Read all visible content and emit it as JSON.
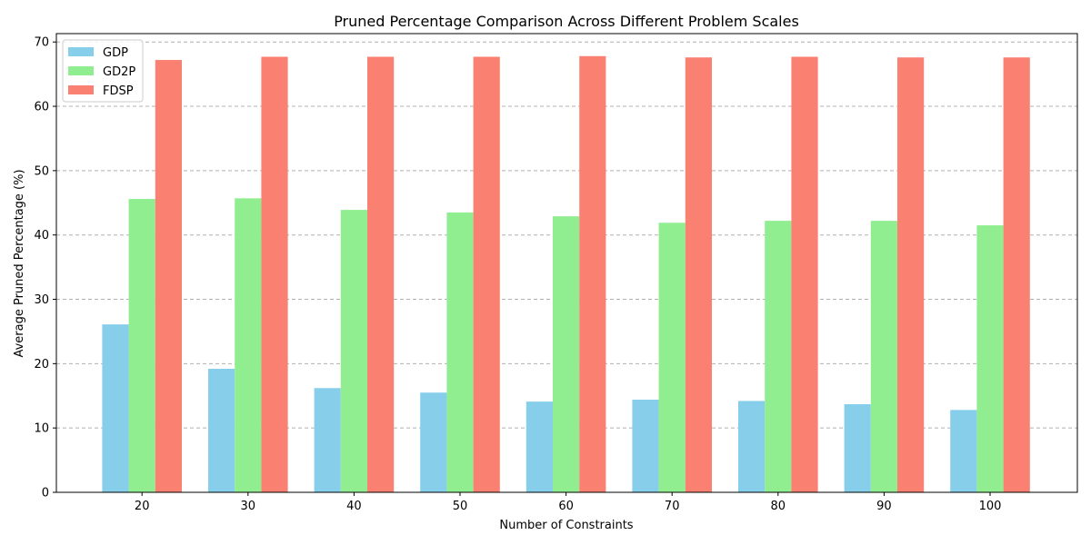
{
  "chart_data": {
    "type": "bar",
    "title": "Pruned Percentage Comparison Across Different Problem Scales",
    "xlabel": "Number of Constraints",
    "ylabel": "Average Pruned Percentage (%)",
    "categories": [
      "20",
      "30",
      "40",
      "50",
      "60",
      "70",
      "80",
      "90",
      "100"
    ],
    "ylim": [
      0,
      71.3
    ],
    "yticks": [
      0,
      10,
      20,
      30,
      40,
      50,
      60,
      70
    ],
    "grid": "y-dashed",
    "legend_position": "top-left",
    "series": [
      {
        "name": "GDP",
        "color": "#87CEEB",
        "values": [
          26.1,
          19.2,
          16.2,
          15.5,
          14.1,
          14.4,
          14.2,
          13.7,
          12.8
        ]
      },
      {
        "name": "GD2P",
        "color": "#90EE90",
        "values": [
          45.6,
          45.7,
          43.9,
          43.5,
          42.9,
          41.9,
          42.2,
          42.2,
          41.5
        ]
      },
      {
        "name": "FDSP",
        "color": "#FA8072",
        "values": [
          67.2,
          67.7,
          67.7,
          67.7,
          67.8,
          67.6,
          67.7,
          67.6,
          67.6
        ]
      }
    ]
  }
}
